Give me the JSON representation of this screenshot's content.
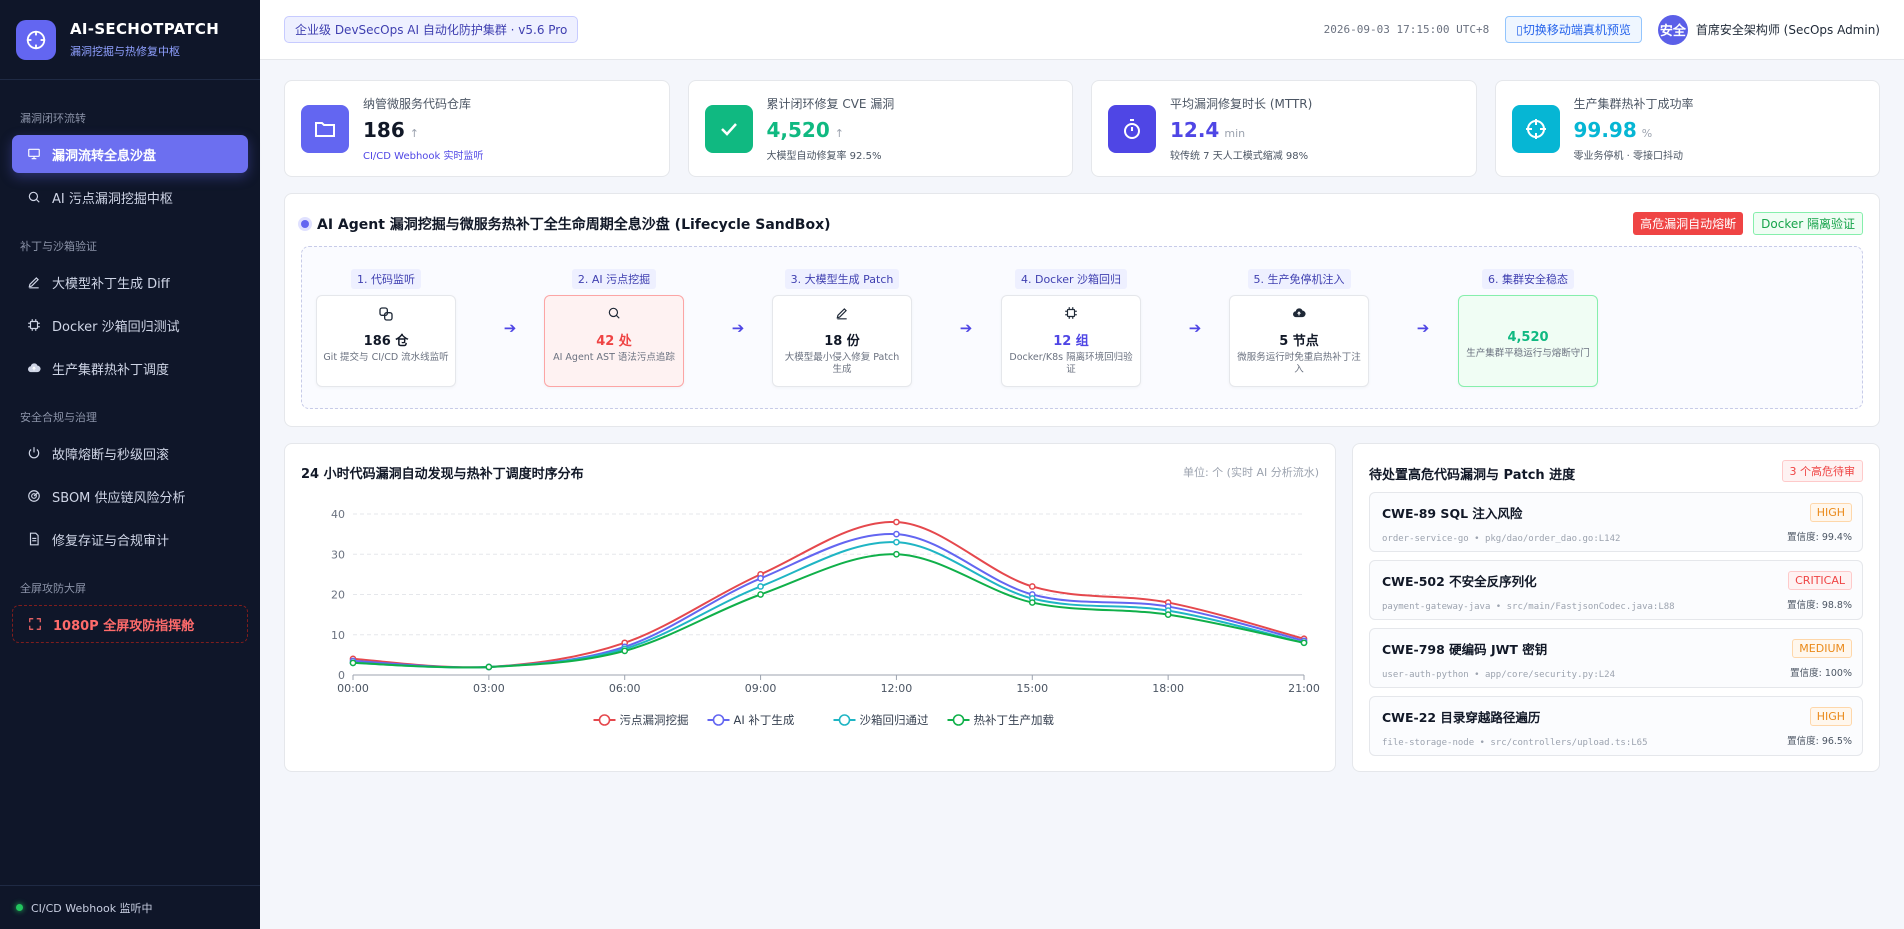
{
  "brand": {
    "title": "AI-SECHOTPATCH",
    "subtitle": "漏洞挖掘与热修复中枢"
  },
  "sidebar": {
    "groups": [
      {
        "label": "漏洞闭环流转",
        "items": [
          {
            "label": "漏洞流转全息沙盘",
            "icon": "monitor-icon",
            "active": true
          },
          {
            "label": "AI 污点漏洞挖掘中枢",
            "icon": "search-icon"
          }
        ]
      },
      {
        "label": "补丁与沙箱验证",
        "items": [
          {
            "label": "大模型补丁生成 Diff",
            "icon": "pen-icon"
          },
          {
            "label": "Docker 沙箱回归测试",
            "icon": "chip-icon"
          },
          {
            "label": "生产集群热补丁调度",
            "icon": "cloud-upload-icon"
          }
        ]
      },
      {
        "label": "安全合规与治理",
        "items": [
          {
            "label": "故障熔断与秒级回滚",
            "icon": "power-icon"
          },
          {
            "label": "SBOM 供应链风险分析",
            "icon": "radar-icon"
          },
          {
            "label": "修复存证与合规审计",
            "icon": "document-icon"
          }
        ]
      },
      {
        "label": "全屏攻防大屏",
        "items": [
          {
            "label": "1080P 全屏攻防指挥舱",
            "icon": "fullscreen-icon",
            "danger": true
          }
        ]
      }
    ],
    "footer": "CI/CD Webhook 监听中"
  },
  "header": {
    "env": "企业级 DevSecOps AI 自动化防护集群 · v5.6 Pro",
    "clock": "2026-09-03 17:15:00 UTC+8",
    "mobile_btn": "切换移动端真机预览",
    "avatar": "安全",
    "user": "首席安全架构师 (SecOps Admin)"
  },
  "kpis": [
    {
      "label": "纳管微服务代码仓库",
      "value": "186",
      "trend": "↑",
      "sub": "CI/CD Webhook 实时监听",
      "color": "#6366f1",
      "value_color": "#111827",
      "sub_color": "#4f46e5",
      "icon": "folder-icon"
    },
    {
      "label": "累计闭环修复 CVE 漏洞",
      "value": "4,520",
      "trend": "↑",
      "sub": "大模型自动修复率 92.5%",
      "color": "#10b981",
      "value_color": "#10b981",
      "sub_color": "#4b5563",
      "icon": "check-icon"
    },
    {
      "label": "平均漏洞修复时长 (MTTR)",
      "value": "12.4",
      "unit": "min",
      "sub": "较传统 7 天人工模式缩减 98%",
      "color": "#4f46e5",
      "value_color": "#4f46e5",
      "sub_color": "#4b5563",
      "icon": "stopwatch-icon"
    },
    {
      "label": "生产集群热补丁成功率",
      "value": "99.98",
      "unit": "%",
      "sub": "零业务停机 · 零接口抖动",
      "color": "#06b6d4",
      "value_color": "#06b6d4",
      "sub_color": "#4b5563",
      "icon": "target-icon"
    }
  ],
  "lifecycle": {
    "title": "AI Agent 漏洞挖掘与微服务热补丁全生命周期全息沙盘 (Lifecycle SandBox)",
    "tag_red": "高危漏洞自动熔断",
    "tag_green": "Docker 隔离验证",
    "stages": [
      {
        "label": "1. 代码监听",
        "value": "186 仓",
        "desc": "Git 提交与 CI/CD 流水线监听",
        "icon": "link-icon",
        "style": "",
        "value_color": "#111827"
      },
      {
        "label": "2. AI 污点挖掘",
        "value": "42 处",
        "desc": "AI Agent AST 语法污点追踪",
        "icon": "search-icon",
        "style": "red",
        "value_color": "#ef4444"
      },
      {
        "label": "3. 大模型生成 Patch",
        "value": "18 份",
        "desc": "大模型最小侵入修复 Patch 生成",
        "icon": "pen-icon",
        "style": "",
        "value_color": "#111827"
      },
      {
        "label": "4. Docker 沙箱回归",
        "value": "12 组",
        "desc": "Docker/K8s 隔离环境回归验证",
        "icon": "chip-icon",
        "style": "",
        "value_color": "#4f46e5"
      },
      {
        "label": "5. 生产免停机注入",
        "value": "5 节点",
        "desc": "微服务运行时免重启热补丁注入",
        "icon": "cloud-upload-icon",
        "style": "",
        "value_color": "#111827"
      },
      {
        "label": "6. 集群安全稳态",
        "value": "4,520",
        "desc": "生产集群平稳运行与熔断守门",
        "icon": "",
        "style": "green",
        "value_color": "#10b981"
      }
    ],
    "arrow": "➔"
  },
  "chart_panel": {
    "title": "24 小时代码漏洞自动发现与热补丁调度时序分布",
    "unit": "单位: 个 (实时 AI 分析流水)"
  },
  "chart_data": {
    "type": "line",
    "title": "24 小时代码漏洞自动发现与热补丁调度时序分布",
    "x": [
      "00:00",
      "03:00",
      "06:00",
      "09:00",
      "12:00",
      "15:00",
      "18:00",
      "21:00"
    ],
    "ylim": [
      0,
      40
    ],
    "yticks": [
      0,
      10,
      20,
      30,
      40
    ],
    "grid": true,
    "legend": "bottom",
    "smooth": true,
    "series": [
      {
        "name": "污点漏洞挖掘",
        "color": "#e5484d",
        "values": [
          4,
          2,
          8,
          25,
          38,
          22,
          18,
          9
        ]
      },
      {
        "name": "AI 补丁生成",
        "color": "#6366f1",
        "values": [
          3.5,
          2,
          7,
          24,
          35,
          20,
          17,
          8.5
        ]
      },
      {
        "name": "沙箱回归通过",
        "color": "#1fb5c4",
        "values": [
          3,
          2,
          6.5,
          22,
          33,
          19,
          16,
          8
        ]
      },
      {
        "name": "热补丁生产加载",
        "color": "#10b04a",
        "values": [
          3,
          2,
          6,
          20,
          30,
          18,
          15,
          8
        ]
      }
    ]
  },
  "vuln_panel": {
    "title": "待处置高危代码漏洞与 Patch 进度",
    "badge": "3 个高危待审",
    "items": [
      {
        "name": "CWE-89 SQL 注入风险",
        "path": "order-service-go  •  pkg/dao/order_dao.go:L142",
        "severity": "HIGH",
        "sev_class": "high",
        "confidence": "置信度: 99.4%"
      },
      {
        "name": "CWE-502 不安全反序列化",
        "path": "payment-gateway-java  •  src/main/FastjsonCodec.java:L88",
        "severity": "CRITICAL",
        "sev_class": "critical",
        "confidence": "置信度: 98.8%"
      },
      {
        "name": "CWE-798 硬编码 JWT 密钥",
        "path": "user-auth-python  •  app/core/security.py:L24",
        "severity": "MEDIUM",
        "sev_class": "medium",
        "confidence": "置信度: 100%"
      },
      {
        "name": "CWE-22 目录穿越路径遍历",
        "path": "file-storage-node  •  src/controllers/upload.ts:L65",
        "severity": "HIGH",
        "sev_class": "high",
        "confidence": "置信度: 96.5%"
      }
    ]
  }
}
